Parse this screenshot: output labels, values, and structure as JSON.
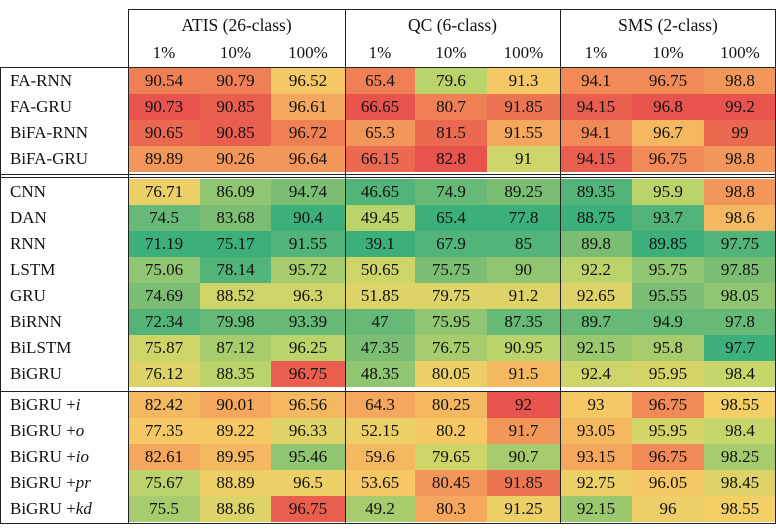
{
  "groups": [
    {
      "name": "ATIS (26-class)",
      "subs": [
        "1%",
        "10%",
        "100%"
      ]
    },
    {
      "name": "QC (6-class)",
      "subs": [
        "1%",
        "10%",
        "100%"
      ]
    },
    {
      "name": "SMS (2-class)",
      "subs": [
        "1%",
        "10%",
        "100%"
      ]
    }
  ],
  "sections": [
    {
      "rows": [
        {
          "label": "FA-RNN",
          "values": [
            "90.54",
            "90.79",
            "96.52",
            "65.4",
            "79.6",
            "91.3",
            "94.1",
            "96.75",
            "98.8"
          ]
        },
        {
          "label": "FA-GRU",
          "values": [
            "90.73",
            "90.85",
            "96.61",
            "66.65",
            "80.7",
            "91.85",
            "94.15",
            "96.8",
            "99.2"
          ]
        },
        {
          "label": "BiFA-RNN",
          "values": [
            "90.65",
            "90.85",
            "96.72",
            "65.3",
            "81.5",
            "91.55",
            "94.1",
            "96.7",
            "99"
          ]
        },
        {
          "label": "BiFA-GRU",
          "values": [
            "89.89",
            "90.26",
            "96.64",
            "66.15",
            "82.8",
            "91",
            "94.15",
            "96.75",
            "98.8"
          ]
        }
      ]
    },
    {
      "rows": [
        {
          "label": "CNN",
          "values": [
            "76.71",
            "86.09",
            "94.74",
            "46.65",
            "74.9",
            "89.25",
            "89.35",
            "95.9",
            "98.8"
          ]
        },
        {
          "label": "DAN",
          "values": [
            "74.5",
            "83.68",
            "90.4",
            "49.45",
            "65.4",
            "77.8",
            "88.75",
            "93.7",
            "98.6"
          ]
        },
        {
          "label": "RNN",
          "values": [
            "71.19",
            "75.17",
            "91.55",
            "39.1",
            "67.9",
            "85",
            "89.8",
            "89.85",
            "97.75"
          ]
        },
        {
          "label": "LSTM",
          "values": [
            "75.06",
            "78.14",
            "95.72",
            "50.65",
            "75.75",
            "90",
            "92.2",
            "95.75",
            "97.85"
          ]
        },
        {
          "label": "GRU",
          "values": [
            "74.69",
            "88.52",
            "96.3",
            "51.85",
            "79.75",
            "91.2",
            "92.65",
            "95.55",
            "98.05"
          ]
        },
        {
          "label": "BiRNN",
          "values": [
            "72.34",
            "79.98",
            "93.39",
            "47",
            "75.95",
            "87.35",
            "89.7",
            "94.9",
            "97.8"
          ]
        },
        {
          "label": "BiLSTM",
          "values": [
            "75.87",
            "87.12",
            "96.25",
            "47.35",
            "76.75",
            "90.95",
            "92.15",
            "95.8",
            "97.7"
          ]
        },
        {
          "label": "BiGRU",
          "values": [
            "76.12",
            "88.35",
            "96.75",
            "48.35",
            "80.05",
            "91.5",
            "92.4",
            "95.95",
            "98.4"
          ]
        }
      ]
    },
    {
      "rows": [
        {
          "label": "BiGRU +",
          "suffix": "i",
          "values": [
            "82.42",
            "90.01",
            "96.56",
            "64.3",
            "80.25",
            "92",
            "93",
            "96.75",
            "98.55"
          ]
        },
        {
          "label": "BiGRU +",
          "suffix": "o",
          "values": [
            "77.35",
            "89.22",
            "96.33",
            "52.15",
            "80.2",
            "91.7",
            "93.05",
            "95.95",
            "98.4"
          ]
        },
        {
          "label": "BiGRU +",
          "suffix": "io",
          "values": [
            "82.61",
            "89.95",
            "95.46",
            "59.6",
            "79.65",
            "90.7",
            "93.15",
            "96.75",
            "98.25"
          ]
        },
        {
          "label": "BiGRU +",
          "suffix": "pr",
          "values": [
            "75.67",
            "88.89",
            "96.5",
            "53.65",
            "80.45",
            "91.85",
            "92.75",
            "96.05",
            "98.45"
          ]
        },
        {
          "label": "BiGRU +",
          "suffix": "kd",
          "values": [
            "75.5",
            "88.86",
            "96.75",
            "49.2",
            "80.3",
            "91.25",
            "92.15",
            "96",
            "98.55"
          ]
        }
      ]
    }
  ],
  "colors": {
    "red": "#e8534d",
    "orange": "#f39a5a",
    "yellow": "#f5cf66",
    "lime": "#c4d66a",
    "green": "#7fbf73",
    "teal": "#3daf7a"
  }
}
